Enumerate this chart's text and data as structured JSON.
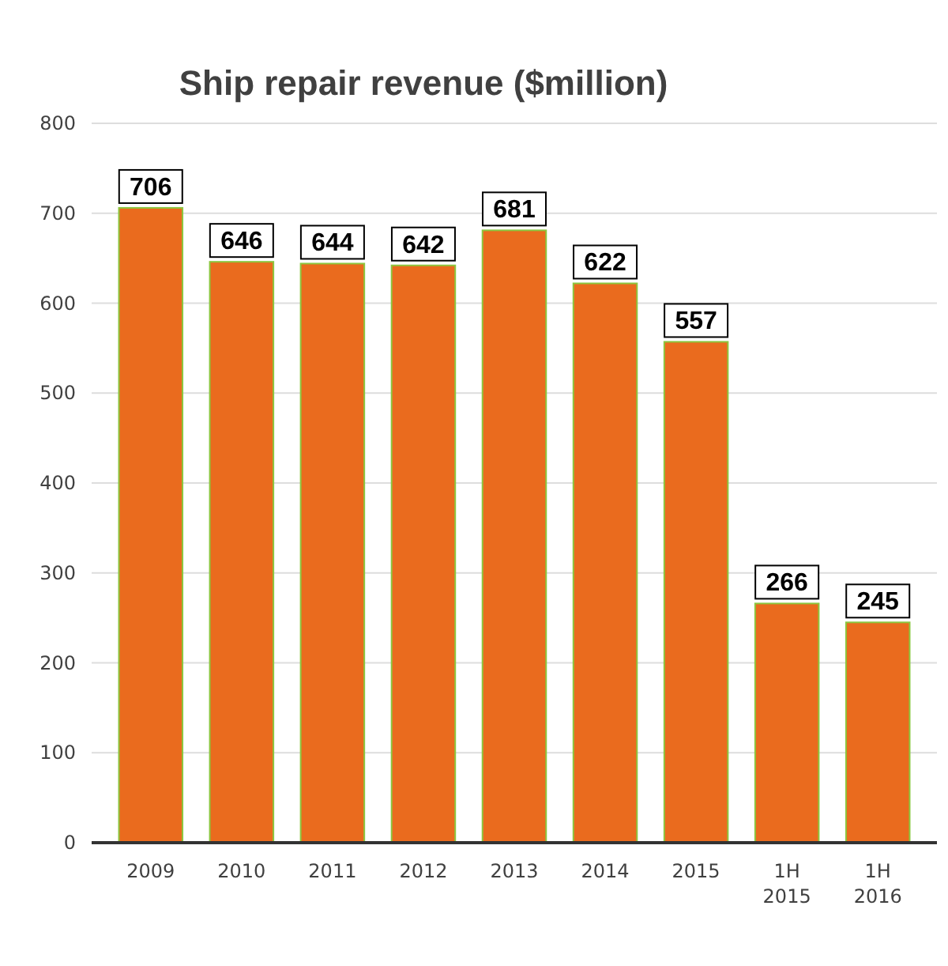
{
  "chart_data": {
    "type": "bar",
    "title": "Ship repair revenue ($million)",
    "categories": [
      "2009",
      "2010",
      "2011",
      "2012",
      "2013",
      "2014",
      "2015",
      "1H 2015",
      "1H 2016"
    ],
    "values": [
      706,
      646,
      644,
      642,
      681,
      622,
      557,
      266,
      245
    ],
    "color": "#ea6b1e",
    "ylim": [
      0,
      800
    ],
    "yticks": [
      0,
      100,
      200,
      300,
      400,
      500,
      600,
      700,
      800
    ],
    "grid": "y",
    "data_labels": true
  }
}
